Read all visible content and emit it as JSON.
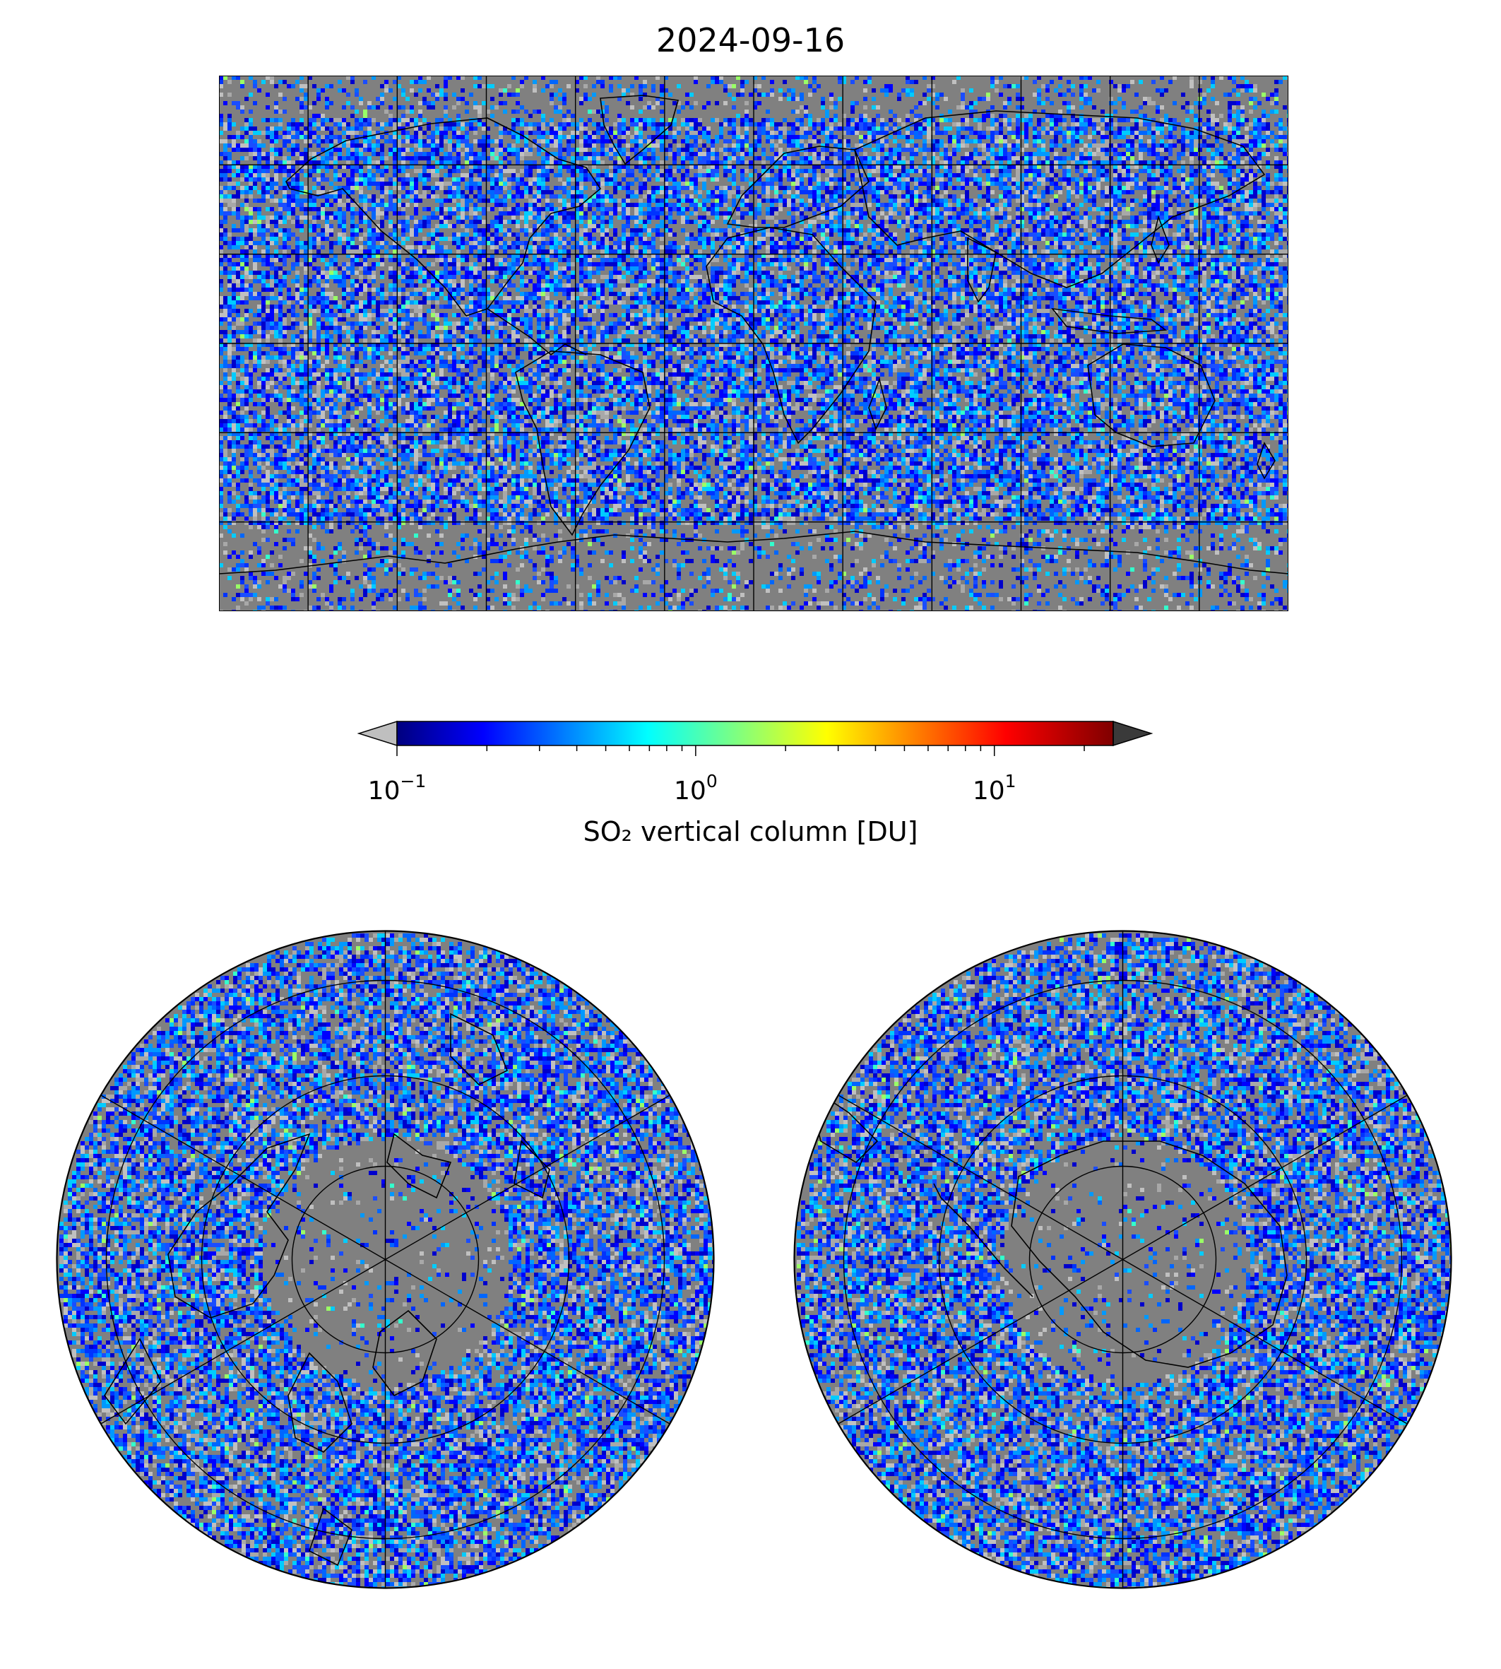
{
  "figure": {
    "title": "2024-09-16"
  },
  "colorbar": {
    "label": "SO₂ vertical column [DU]",
    "scale": "log",
    "range": [
      0.1,
      25
    ],
    "colormap": "jet",
    "extend": "both",
    "under_color": "#bfbfbf",
    "over_color": "#3a3a3a",
    "ticks": [
      {
        "base": "10",
        "exp": "−1",
        "value": 0.1
      },
      {
        "base": "10",
        "exp": "0",
        "value": 1
      },
      {
        "base": "10",
        "exp": "1",
        "value": 10
      }
    ]
  },
  "maps": {
    "global": {
      "projection": "PlateCarree",
      "background": "#808080",
      "gridlines": "30 degree"
    },
    "north_polar": {
      "projection": "NorthPolarStereo",
      "background": "#808080"
    },
    "south_polar": {
      "projection": "SouthPolarStereo",
      "background": "#808080"
    }
  }
}
